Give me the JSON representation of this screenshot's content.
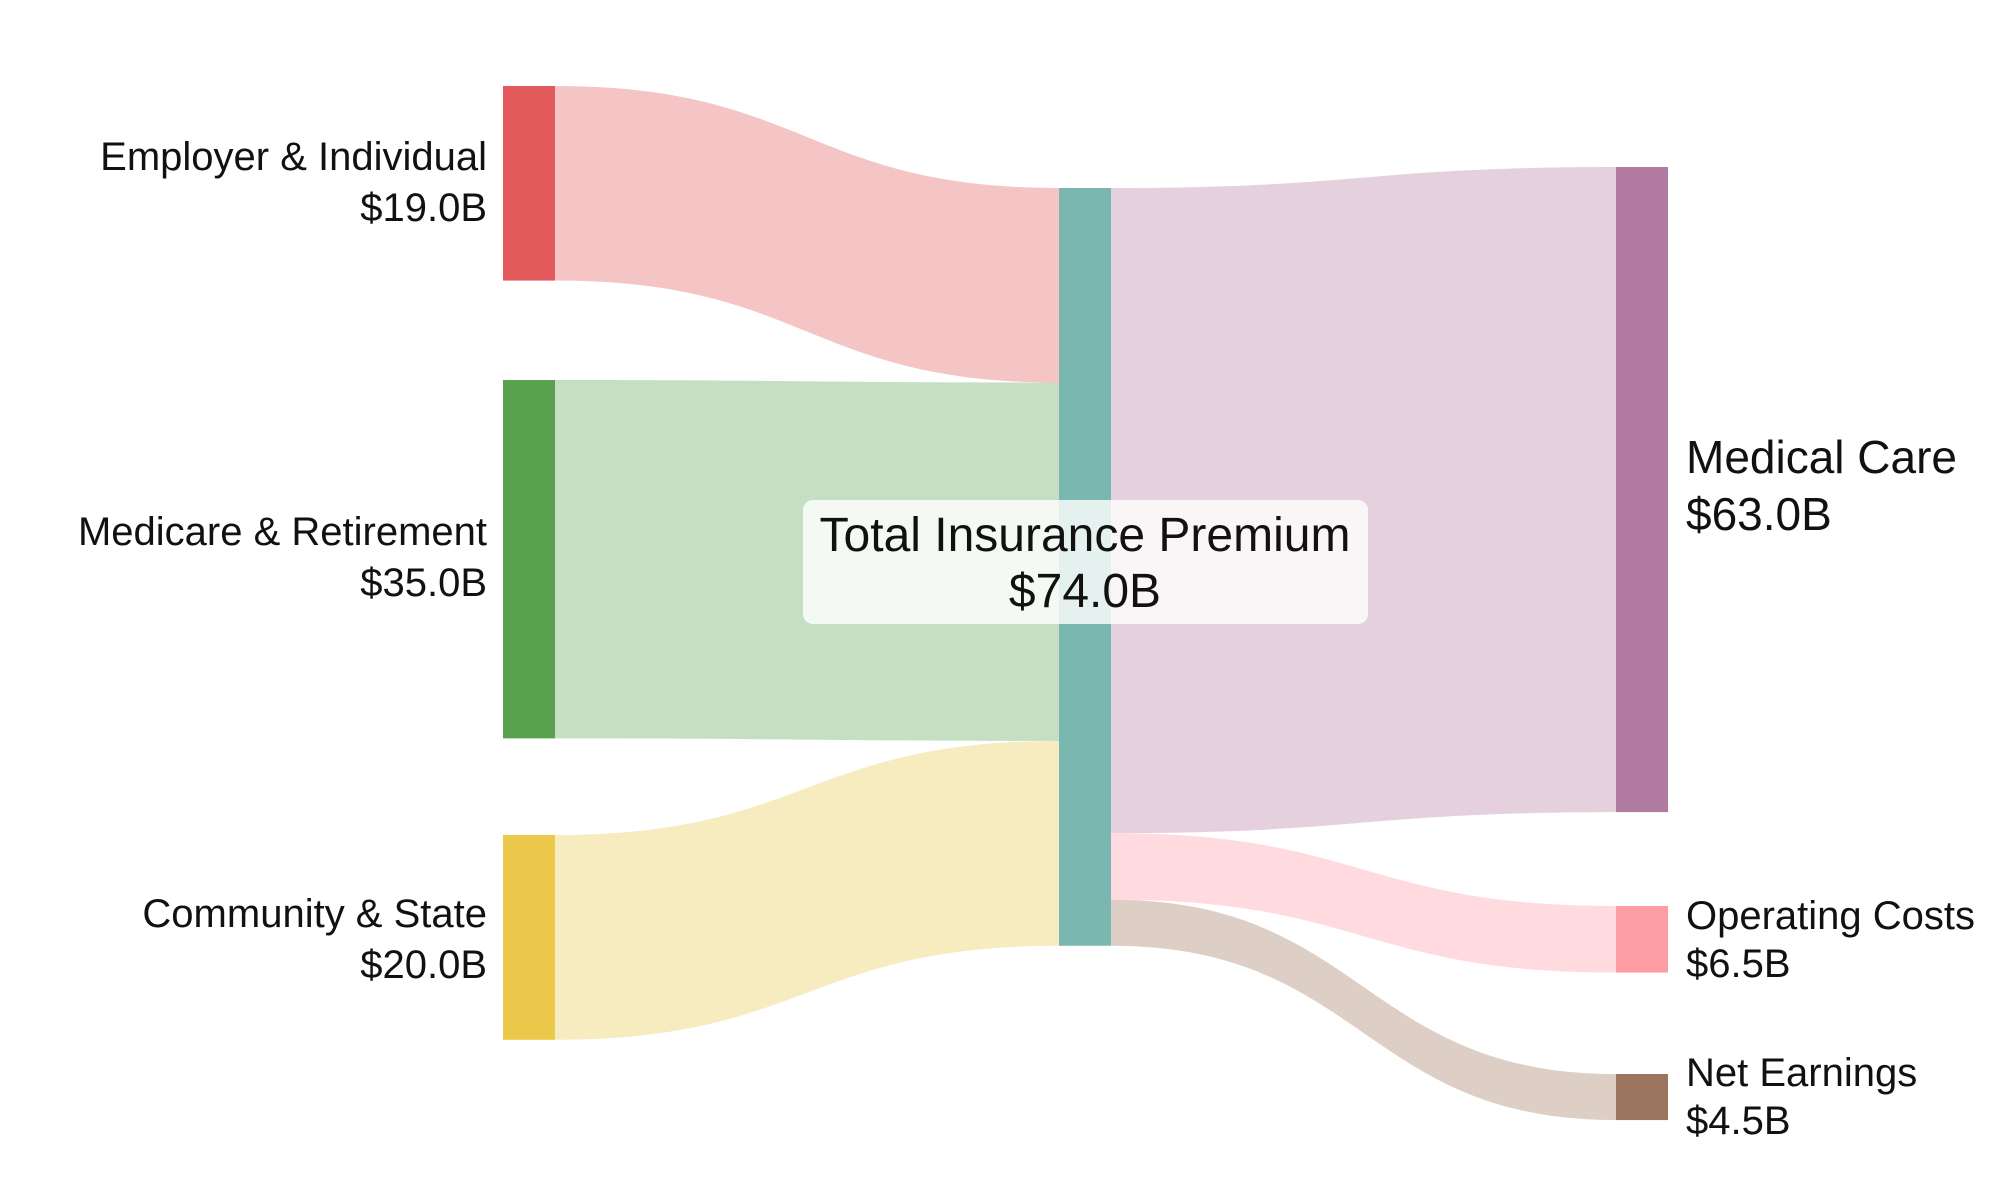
{
  "sankey": {
    "sources": [
      {
        "name": "Employer & Individual",
        "value": 19.0,
        "value_label": "$19.0B",
        "color": "#e35a5c",
        "link_color": "#f5c4c5"
      },
      {
        "name": "Medicare & Retirement",
        "value": 35.0,
        "value_label": "$35.0B",
        "color": "#5aa14f",
        "link_color": "#c5dfc2"
      },
      {
        "name": "Community & State",
        "value": 20.0,
        "value_label": "$20.0B",
        "color": "#ecc94b",
        "link_color": "#f7ebc0"
      }
    ],
    "center": {
      "name": "Total Insurance Premium",
      "value": 74.0,
      "value_label": "$74.0B",
      "color": "#7ab7b1"
    },
    "targets": [
      {
        "name": "Medical Care",
        "value": 63.0,
        "value_label": "$63.0B",
        "color": "#b07aa1",
        "link_color": "#e4d1dd"
      },
      {
        "name": "Operating Costs",
        "value": 6.5,
        "value_label": "$6.5B",
        "color": "#ff9da5",
        "link_color": "#ffdbe0"
      },
      {
        "name": "Net Earnings",
        "value": 4.5,
        "value_label": "$4.5B",
        "color": "#9c755f",
        "link_color": "#ddcec6"
      }
    ]
  }
}
